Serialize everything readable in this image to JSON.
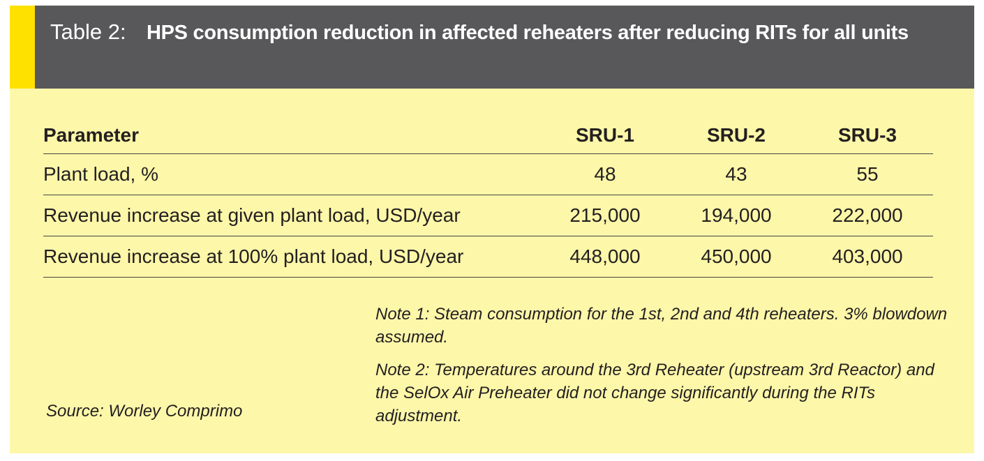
{
  "header": {
    "label": "Table 2:",
    "title": "HPS consumption reduction in affected reheaters after reducing RITs for all units"
  },
  "table": {
    "columns": [
      "Parameter",
      "SRU-1",
      "SRU-2",
      "SRU-3"
    ],
    "rows": [
      [
        "Plant load, %",
        "48",
        "43",
        "55"
      ],
      [
        "Revenue increase at given plant load, USD/year",
        "215,000",
        "194,000",
        "222,000"
      ],
      [
        "Revenue increase at 100% plant load, USD/year",
        "448,000",
        "450,000",
        "403,000"
      ]
    ]
  },
  "notes": [
    "Note 1: Steam consumption for the 1st, 2nd and 4th reheaters. 3% blowdown assumed.",
    "Note 2: Temperatures around the 3rd Reheater (upstream 3rd Reactor) and the SelOx Air Preheater did not change significantly during the RITs adjustment."
  ],
  "source": "Source: Worley Comprimo"
}
